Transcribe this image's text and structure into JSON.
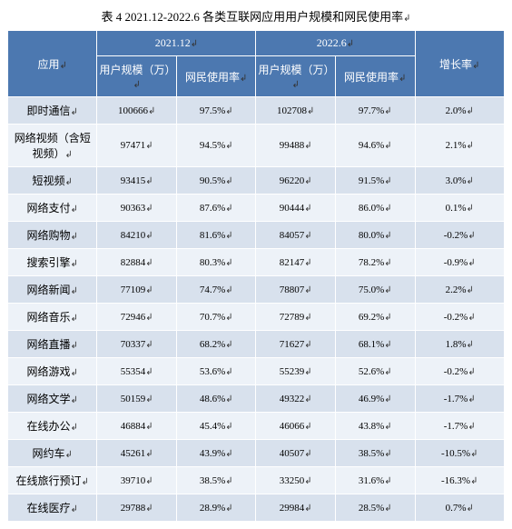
{
  "title": "表 4   2021.12-2022.6 各类互联网应用用户规模和网民使用率",
  "cursor_glyph": "↲",
  "table": {
    "type": "table",
    "header_bg": "#4c78b0",
    "header_fg": "#ffffff",
    "row_odd_bg": "#d8e1ed",
    "row_even_bg": "#edf2f8",
    "border_color": "#ffffff",
    "col_widths_pct": [
      18,
      16,
      16,
      16,
      16,
      18
    ],
    "header": {
      "period1": "2021.12",
      "period2": "2022.6",
      "app": "应用",
      "scale": "用户规模（万）",
      "usage": "网民使用率",
      "growth": "增长率"
    },
    "rows": [
      {
        "app": "即时通信",
        "s1": "100666",
        "u1": "97.5%",
        "s2": "102708",
        "u2": "97.7%",
        "g": "2.0%"
      },
      {
        "app": "网络视频（含短视频）",
        "s1": "97471",
        "u1": "94.5%",
        "s2": "99488",
        "u2": "94.6%",
        "g": "2.1%"
      },
      {
        "app": "短视频",
        "s1": "93415",
        "u1": "90.5%",
        "s2": "96220",
        "u2": "91.5%",
        "g": "3.0%"
      },
      {
        "app": "网络支付",
        "s1": "90363",
        "u1": "87.6%",
        "s2": "90444",
        "u2": "86.0%",
        "g": "0.1%"
      },
      {
        "app": "网络购物",
        "s1": "84210",
        "u1": "81.6%",
        "s2": "84057",
        "u2": "80.0%",
        "g": "-0.2%"
      },
      {
        "app": "搜索引擎",
        "s1": "82884",
        "u1": "80.3%",
        "s2": "82147",
        "u2": "78.2%",
        "g": "-0.9%"
      },
      {
        "app": "网络新闻",
        "s1": "77109",
        "u1": "74.7%",
        "s2": "78807",
        "u2": "75.0%",
        "g": "2.2%"
      },
      {
        "app": "网络音乐",
        "s1": "72946",
        "u1": "70.7%",
        "s2": "72789",
        "u2": "69.2%",
        "g": "-0.2%"
      },
      {
        "app": "网络直播",
        "s1": "70337",
        "u1": "68.2%",
        "s2": "71627",
        "u2": "68.1%",
        "g": "1.8%"
      },
      {
        "app": "网络游戏",
        "s1": "55354",
        "u1": "53.6%",
        "s2": "55239",
        "u2": "52.6%",
        "g": "-0.2%"
      },
      {
        "app": "网络文学",
        "s1": "50159",
        "u1": "48.6%",
        "s2": "49322",
        "u2": "46.9%",
        "g": "-1.7%"
      },
      {
        "app": "在线办公",
        "s1": "46884",
        "u1": "45.4%",
        "s2": "46066",
        "u2": "43.8%",
        "g": "-1.7%"
      },
      {
        "app": "网约车",
        "s1": "45261",
        "u1": "43.9%",
        "s2": "40507",
        "u2": "38.5%",
        "g": "-10.5%"
      },
      {
        "app": "在线旅行预订",
        "s1": "39710",
        "u1": "38.5%",
        "s2": "33250",
        "u2": "31.6%",
        "g": "-16.3%"
      },
      {
        "app": "在线医疗",
        "s1": "29788",
        "u1": "28.9%",
        "s2": "29984",
        "u2": "28.5%",
        "g": "0.7%"
      }
    ]
  }
}
